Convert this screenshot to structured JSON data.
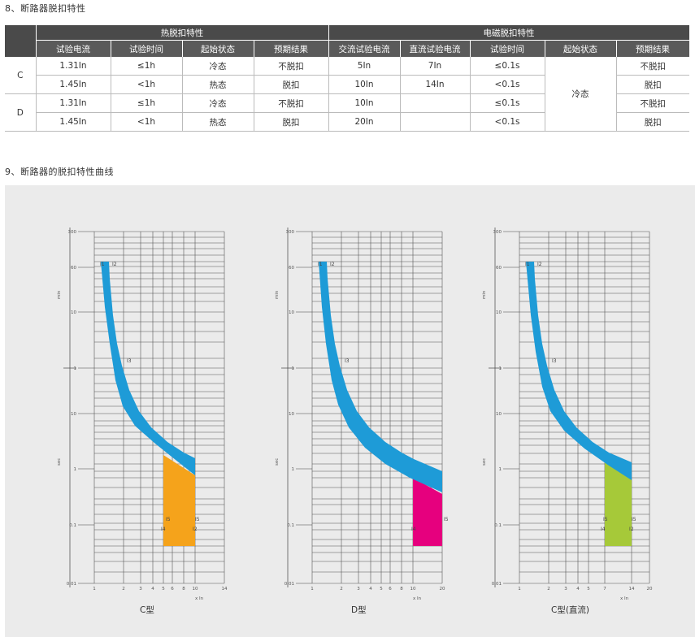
{
  "section8_title": "8、断路器脱扣特性",
  "section9_title": "9、断路器的脱扣特性曲线",
  "table": {
    "group_thermal": "热脱扣特性",
    "group_magnetic": "电磁脱扣特性",
    "headers": [
      "试验电流",
      "试验时间",
      "起始状态",
      "预期结果",
      "交流试验电流",
      "直流试验电流",
      "试验时间",
      "起始状态",
      "预期结果"
    ],
    "row_labels": [
      "C",
      "D"
    ],
    "rows": [
      [
        "1.31In",
        "≤1h",
        "冷态",
        "不脱扣",
        "5In",
        "7In",
        "≤0.1s",
        "不脱扣"
      ],
      [
        "1.45In",
        "<1h",
        "热态",
        "脱扣",
        "10In",
        "14In",
        "<0.1s",
        "脱扣"
      ],
      [
        "1.31In",
        "≤1h",
        "冷态",
        "不脱扣",
        "10In",
        "",
        "≤0.1s",
        "不脱扣"
      ],
      [
        "1.45In",
        "<1h",
        "热态",
        "脱扣",
        "20In",
        "",
        "<0.1s",
        "脱扣"
      ]
    ],
    "merged_state": "冷态"
  },
  "charts": [
    {
      "caption": "C型",
      "x_ticks": [
        "1",
        "2",
        "3",
        "4",
        "5",
        "6",
        "8",
        "10",
        "14"
      ],
      "band_color": "#1e9bd7",
      "fill_color": "#f5a31b",
      "marker_labels": [
        "I1",
        "I2",
        "I3",
        "I5",
        "I4",
        "I5",
        "I2"
      ]
    },
    {
      "caption": "D型",
      "x_ticks": [
        "1",
        "2",
        "3",
        "4",
        "5",
        "6",
        "8",
        "10",
        "20"
      ],
      "band_color": "#1e9bd7",
      "fill_color": "#e6007e",
      "marker_labels": [
        "I1",
        "I2",
        "I3",
        "I4",
        "I5"
      ]
    },
    {
      "caption": "C型(直流)",
      "x_ticks": [
        "1",
        "2",
        "3",
        "4",
        "5",
        "7",
        "14",
        "20"
      ],
      "band_color": "#1e9bd7",
      "fill_color": "#a6c939",
      "marker_labels": [
        "I1",
        "I2",
        "I3",
        "I5",
        "I4",
        "I5",
        "I2"
      ]
    }
  ],
  "axis": {
    "y_min_ticks": [
      "300",
      "60",
      "10",
      "1"
    ],
    "y_sec_ticks": [
      "10",
      "1",
      "0.1",
      "0.01"
    ],
    "unit_min": "min",
    "unit_sec": "sec",
    "x_unit": "x In"
  }
}
